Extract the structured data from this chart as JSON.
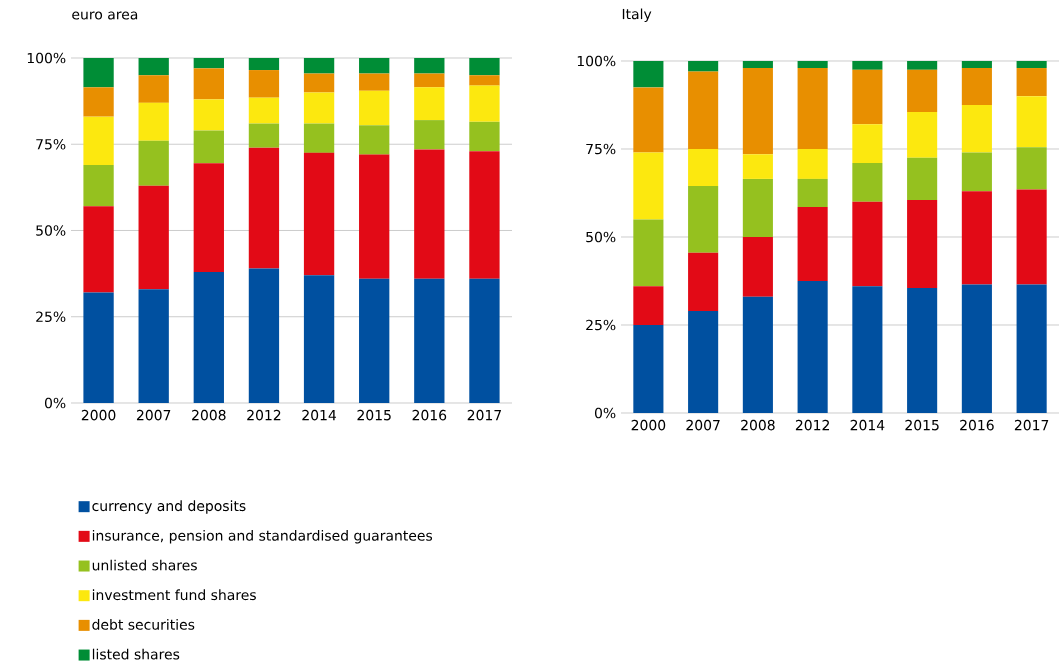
{
  "chart_data": [
    {
      "type": "bar",
      "title": "euro area",
      "stacked": true,
      "grid": "y",
      "legend": "bottom",
      "categories": [
        "2000",
        "2007",
        "2008",
        "2012",
        "2014",
        "2015",
        "2016",
        "2017"
      ],
      "ylim": [
        0,
        100
      ],
      "yticks": [
        {
          "value": 0,
          "label": "0%"
        },
        {
          "value": 25,
          "label": "25%"
        },
        {
          "value": 50,
          "label": "50%"
        },
        {
          "value": 75,
          "label": "75%"
        },
        {
          "value": 100,
          "label": "100%"
        }
      ],
      "series": [
        {
          "name": "currency and deposits",
          "color": "#0050a0",
          "values": [
            32,
            33,
            38,
            39,
            37,
            36,
            36,
            36
          ]
        },
        {
          "name": "insurance, pension and standardised guarantees",
          "color": "#e20a16",
          "values": [
            25,
            30,
            31.5,
            35,
            35.5,
            36,
            37.5,
            37
          ]
        },
        {
          "name": "unlisted shares",
          "color": "#95c11f",
          "values": [
            12,
            13,
            9.5,
            7,
            8.5,
            8.5,
            8.5,
            8.5
          ]
        },
        {
          "name": "investment fund shares",
          "color": "#fce80f",
          "values": [
            14,
            11,
            9,
            7.5,
            9,
            10,
            9.5,
            10.5
          ]
        },
        {
          "name": "debt securities",
          "color": "#e88f00",
          "values": [
            8.5,
            8,
            9,
            8,
            5.5,
            5,
            4,
            3
          ]
        },
        {
          "name": "listed shares",
          "color": "#008d36",
          "values": [
            8.5,
            5,
            3,
            3.5,
            4.5,
            4.5,
            4.5,
            5
          ]
        }
      ]
    },
    {
      "type": "bar",
      "title": "Italy",
      "stacked": true,
      "grid": "y",
      "categories": [
        "2000",
        "2007",
        "2008",
        "2012",
        "2014",
        "2015",
        "2016",
        "2017"
      ],
      "ylim": [
        0,
        100
      ],
      "yticks": [
        {
          "value": 0,
          "label": "0%"
        },
        {
          "value": 25,
          "label": "25%"
        },
        {
          "value": 50,
          "label": "50%"
        },
        {
          "value": 75,
          "label": "75%"
        },
        {
          "value": 100,
          "label": "100%"
        }
      ],
      "series": [
        {
          "color": "#0050a0",
          "values": [
            25,
            29,
            33,
            37.5,
            36,
            35.5,
            36.5,
            36.5
          ]
        },
        {
          "color": "#e20a16",
          "values": [
            11,
            16.5,
            17,
            21,
            24,
            25,
            26.5,
            27
          ]
        },
        {
          "color": "#95c11f",
          "values": [
            19,
            19,
            16.5,
            8,
            11,
            12,
            11,
            12
          ]
        },
        {
          "color": "#fce80f",
          "values": [
            19,
            10.5,
            7,
            8.5,
            11,
            13,
            13.5,
            14.5
          ]
        },
        {
          "color": "#e88f00",
          "values": [
            18.5,
            22,
            24.5,
            23,
            15.5,
            12,
            10.5,
            8
          ]
        },
        {
          "color": "#008d36",
          "values": [
            7.5,
            3,
            2,
            2,
            2.5,
            2.5,
            2,
            2
          ]
        }
      ]
    }
  ]
}
